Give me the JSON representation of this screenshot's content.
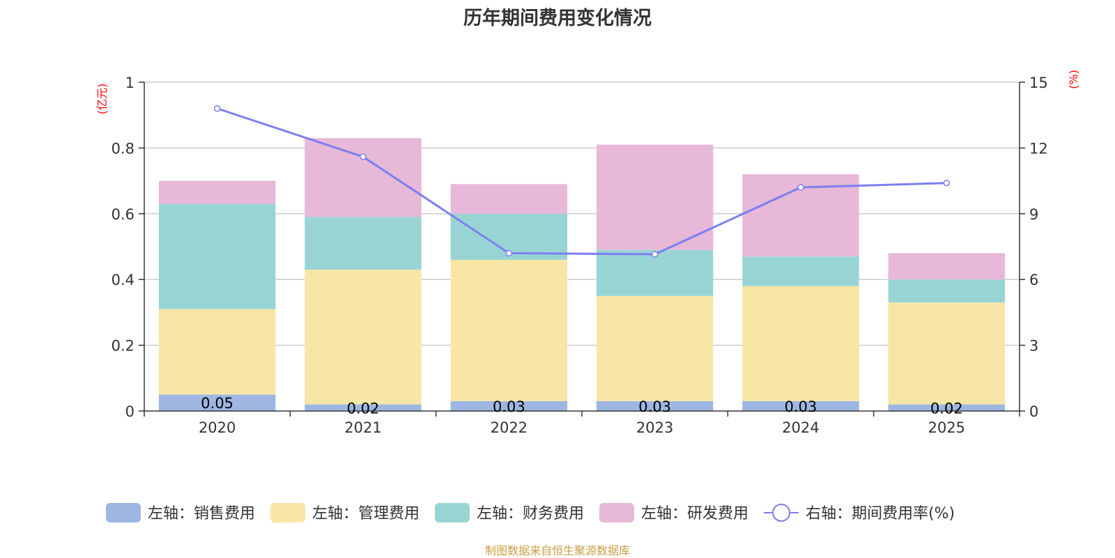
{
  "chart_data": {
    "type": "bar",
    "title": "历年期间费用变化情况",
    "categories": [
      "2020",
      "2021",
      "2022",
      "2023",
      "2024",
      "2025"
    ],
    "series": [
      {
        "name": "左轴：销售费用",
        "axis": "left",
        "color": "#9db6e2",
        "values": [
          0.05,
          0.02,
          0.03,
          0.03,
          0.03,
          0.02
        ],
        "labels": [
          "0.05",
          "0.02",
          "0.03",
          "0.03",
          "0.03",
          "0.02"
        ]
      },
      {
        "name": "左轴：管理费用",
        "axis": "left",
        "color": "#f7e6a6",
        "values": [
          0.26,
          0.41,
          0.43,
          0.32,
          0.35,
          0.31
        ]
      },
      {
        "name": "左轴：财务费用",
        "axis": "left",
        "color": "#99d4d4",
        "values": [
          0.32,
          0.16,
          0.14,
          0.14,
          0.09,
          0.07
        ]
      },
      {
        "name": "左轴：研发费用",
        "axis": "left",
        "color": "#e7b8d8",
        "values": [
          0.07,
          0.24,
          0.09,
          0.32,
          0.25,
          0.08
        ]
      }
    ],
    "line_series": {
      "name": "右轴：期间费用率(%)",
      "axis": "right",
      "color": "#7b7fef",
      "values": [
        13.8,
        11.6,
        7.2,
        7.15,
        10.2,
        10.4
      ]
    },
    "left_axis": {
      "unit": "(亿元)",
      "ylim": [
        0,
        1
      ],
      "ticks": [
        "0",
        "0.2",
        "0.4",
        "0.6",
        "0.8",
        "1"
      ]
    },
    "right_axis": {
      "unit": "(%)",
      "ylim": [
        0,
        15
      ],
      "ticks": [
        "0",
        "3",
        "6",
        "9",
        "12",
        "15"
      ]
    },
    "grid": true,
    "legend_position": "bottom",
    "source": "制图数据来自恒生聚源数据库"
  }
}
